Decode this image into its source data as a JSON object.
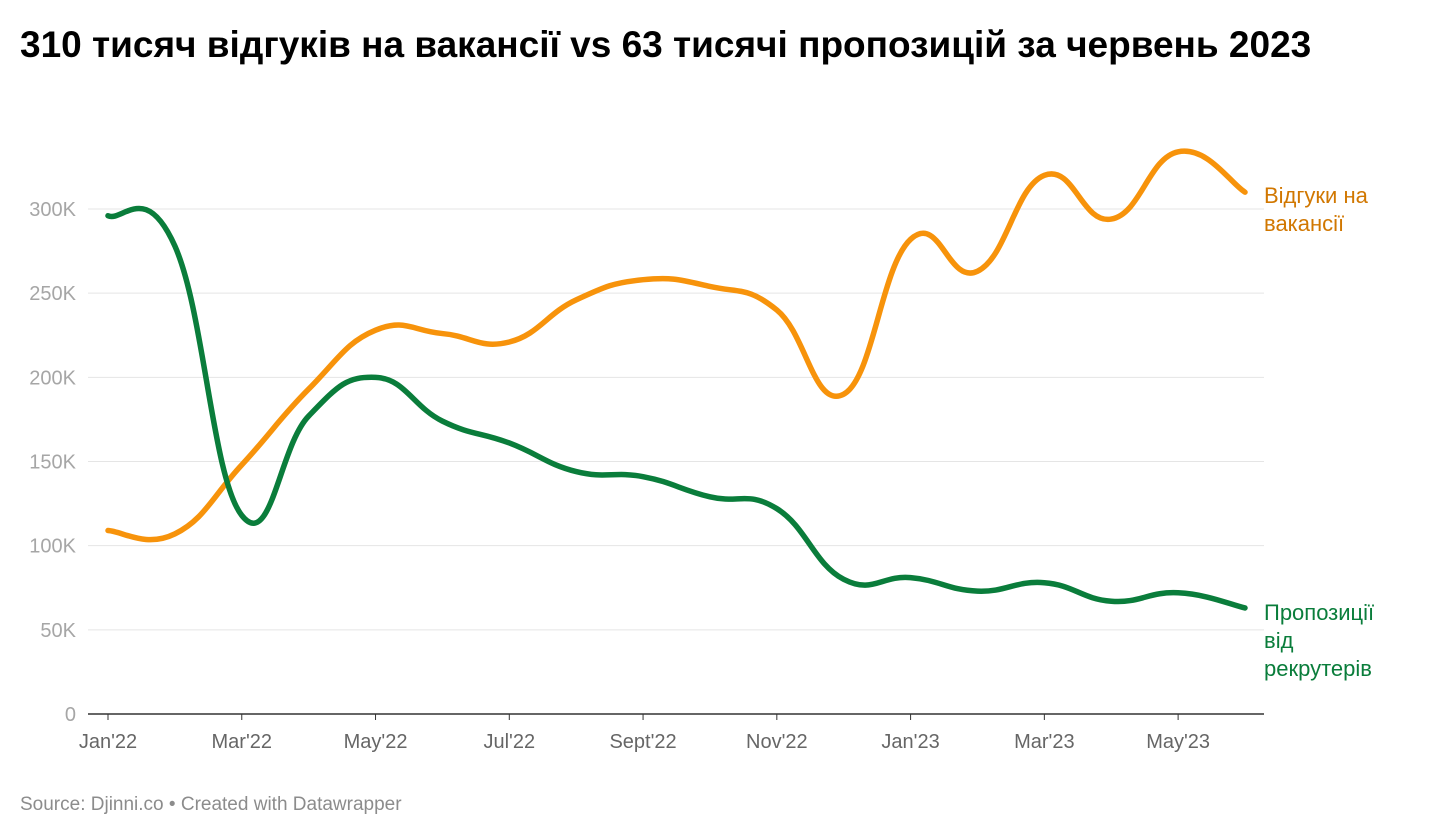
{
  "title": "310 тисяч відгуків на вакансії vs 63 тисячі пропозицій за червень 2023",
  "footer": {
    "source": "Source: Djinni.co",
    "separator": "•",
    "credit": "Created with Datawrapper"
  },
  "chart_data": {
    "type": "line",
    "title": "310 тисяч відгуків на вакансії vs 63 тисячі пропозицій за червень 2023",
    "xlabel": "",
    "ylabel": "",
    "ylim": [
      0,
      300000
    ],
    "grid": true,
    "legend": "direct labels at right end of lines",
    "x": [
      "2022-01",
      "2022-02",
      "2022-03",
      "2022-04",
      "2022-05",
      "2022-06",
      "2022-07",
      "2022-08",
      "2022-09",
      "2022-10",
      "2022-11",
      "2022-12",
      "2023-01",
      "2023-02",
      "2023-03",
      "2023-04",
      "2023-05",
      "2023-06"
    ],
    "x_tick_labels": [
      "Jan'22",
      "Mar'22",
      "May'22",
      "Jul'22",
      "Sept'22",
      "Nov'22",
      "Jan'23",
      "Mar'23",
      "May'23"
    ],
    "x_tick_months": [
      "2022-01",
      "2022-03",
      "2022-05",
      "2022-07",
      "2022-09",
      "2022-11",
      "2023-01",
      "2023-03",
      "2023-05"
    ],
    "y_ticks": [
      0,
      50000,
      100000,
      150000,
      200000,
      250000,
      300000
    ],
    "y_tick_labels": [
      "0",
      "50K",
      "100K",
      "150K",
      "200K",
      "250K",
      "300K"
    ],
    "series": [
      {
        "name": "Відгуки на вакансії",
        "label_lines": [
          "Відгуки на",
          "вакансії"
        ],
        "color": "#f7930b",
        "label_color": "#d17700",
        "values": [
          109000,
          107000,
          148000,
          193000,
          228000,
          226000,
          221000,
          246000,
          258000,
          254000,
          240000,
          190000,
          282000,
          263000,
          320000,
          294000,
          334000,
          310000
        ]
      },
      {
        "name": "Пропозиції від рекрутерів",
        "label_lines": [
          "Пропозиції",
          "від",
          "рекрутерів"
        ],
        "color": "#0a7d3b",
        "label_color": "#0a7d3b",
        "values": [
          296000,
          278000,
          118000,
          177000,
          200000,
          174000,
          161000,
          144000,
          141000,
          129000,
          122000,
          80000,
          81000,
          73000,
          78000,
          67000,
          72000,
          63000
        ]
      }
    ]
  },
  "colors": {
    "grid": "#e5e5e5",
    "axis": "#333333",
    "tick_text": "#a6a6a6",
    "x_tick_text": "#666666"
  }
}
